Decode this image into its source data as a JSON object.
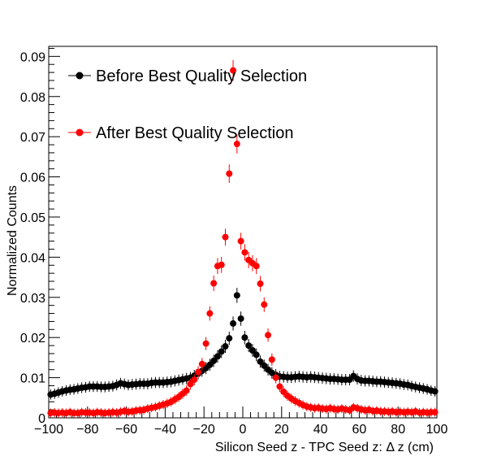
{
  "chart_data": {
    "type": "scatter",
    "xlabel": "Silicon Seed z - TPC Seed z:      Δ z (cm)",
    "ylabel": "Normalized Counts",
    "xlim": [
      -100,
      100
    ],
    "ylim": [
      0,
      0.0925
    ],
    "x_ticks": [
      "−100",
      "−80",
      "−60",
      "−40",
      "−20",
      "0",
      "20",
      "40",
      "60",
      "80",
      "100"
    ],
    "y_ticks": [
      "0",
      "0.01",
      "0.02",
      "0.03",
      "0.04",
      "0.05",
      "0.06",
      "0.07",
      "0.08",
      "0.09"
    ],
    "legend_position": "top-left",
    "series": [
      {
        "name": "Before Best Quality Selection",
        "color": "#000000",
        "x": [
          -99,
          -97,
          -95,
          -93,
          -91,
          -89,
          -87,
          -85,
          -83,
          -81,
          -79,
          -77,
          -75,
          -73,
          -71,
          -69,
          -67,
          -65,
          -63,
          -61,
          -59,
          -57,
          -55,
          -53,
          -51,
          -49,
          -47,
          -45,
          -43,
          -41,
          -39,
          -37,
          -35,
          -33,
          -31,
          -29,
          -27,
          -25,
          -23,
          -21,
          -19,
          -17,
          -15,
          -13,
          -11,
          -9,
          -7,
          -5,
          -3,
          -1,
          1,
          3,
          5,
          7,
          9,
          11,
          13,
          15,
          17,
          19,
          21,
          23,
          25,
          27,
          29,
          31,
          33,
          35,
          37,
          39,
          41,
          43,
          45,
          47,
          49,
          51,
          53,
          55,
          57,
          59,
          61,
          63,
          65,
          67,
          69,
          71,
          73,
          75,
          77,
          79,
          81,
          83,
          85,
          87,
          89,
          91,
          93,
          95,
          97,
          99
        ],
        "y": [
          0.0058,
          0.006,
          0.0063,
          0.0066,
          0.0068,
          0.007,
          0.0071,
          0.0073,
          0.0075,
          0.0076,
          0.0078,
          0.0078,
          0.0078,
          0.0077,
          0.0077,
          0.0078,
          0.0079,
          0.0082,
          0.0086,
          0.0084,
          0.0082,
          0.0083,
          0.0084,
          0.0085,
          0.0085,
          0.0085,
          0.0087,
          0.0088,
          0.0088,
          0.0088,
          0.0089,
          0.009,
          0.0092,
          0.0094,
          0.0096,
          0.0098,
          0.01,
          0.0105,
          0.011,
          0.0117,
          0.0124,
          0.0132,
          0.0142,
          0.0153,
          0.0165,
          0.0178,
          0.0198,
          0.0235,
          0.0305,
          0.0247,
          0.02,
          0.018,
          0.0168,
          0.0157,
          0.014,
          0.013,
          0.012,
          0.0112,
          0.0107,
          0.0103,
          0.0102,
          0.0101,
          0.0101,
          0.0102,
          0.0103,
          0.0102,
          0.0101,
          0.0102,
          0.0101,
          0.01,
          0.0099,
          0.0098,
          0.0097,
          0.0097,
          0.0096,
          0.0095,
          0.0095,
          0.0095,
          0.0104,
          0.0097,
          0.0093,
          0.0092,
          0.0092,
          0.0091,
          0.009,
          0.009,
          0.0089,
          0.0088,
          0.0087,
          0.0086,
          0.0085,
          0.0083,
          0.0082,
          0.0079,
          0.0077,
          0.0075,
          0.0073,
          0.0071,
          0.0068,
          0.0066
        ]
      },
      {
        "name": "After Best Quality Selection",
        "color": "#ff0000",
        "x": [
          -99,
          -97,
          -95,
          -93,
          -91,
          -89,
          -87,
          -85,
          -83,
          -81,
          -79,
          -77,
          -75,
          -73,
          -71,
          -69,
          -67,
          -65,
          -63,
          -61,
          -59,
          -57,
          -55,
          -53,
          -51,
          -49,
          -47,
          -45,
          -43,
          -41,
          -39,
          -37,
          -35,
          -33,
          -31,
          -29,
          -27,
          -25,
          -23,
          -21,
          -19,
          -17,
          -15,
          -13,
          -11,
          -9,
          -7,
          -5,
          -3,
          -1,
          1,
          3,
          5,
          7,
          9,
          11,
          13,
          15,
          17,
          19,
          21,
          23,
          25,
          27,
          29,
          31,
          33,
          35,
          37,
          39,
          41,
          43,
          45,
          47,
          49,
          51,
          53,
          55,
          57,
          59,
          61,
          63,
          65,
          67,
          69,
          71,
          73,
          75,
          77,
          79,
          81,
          83,
          85,
          87,
          89,
          91,
          93,
          95,
          97,
          99
        ],
        "y": [
          0.0012,
          0.0013,
          0.0012,
          0.0013,
          0.0012,
          0.0014,
          0.0012,
          0.0012,
          0.0014,
          0.0013,
          0.0013,
          0.0012,
          0.0014,
          0.0013,
          0.0012,
          0.0013,
          0.0014,
          0.0013,
          0.0015,
          0.0017,
          0.0015,
          0.0016,
          0.0018,
          0.0019,
          0.002,
          0.0023,
          0.0025,
          0.0027,
          0.003,
          0.0033,
          0.0036,
          0.004,
          0.0046,
          0.0052,
          0.006,
          0.0068,
          0.0084,
          0.0095,
          0.0114,
          0.0134,
          0.0185,
          0.026,
          0.0335,
          0.0378,
          0.0381,
          0.045,
          0.0608,
          0.0865,
          0.0682,
          0.044,
          0.0412,
          0.0393,
          0.0385,
          0.0378,
          0.0334,
          0.0282,
          0.0206,
          0.0145,
          0.01,
          0.0078,
          0.0065,
          0.0055,
          0.0048,
          0.0042,
          0.0037,
          0.0032,
          0.0028,
          0.0026,
          0.0024,
          0.0025,
          0.0023,
          0.0022,
          0.0024,
          0.0022,
          0.0021,
          0.0023,
          0.0021,
          0.0019,
          0.0026,
          0.0024,
          0.0021,
          0.0019,
          0.002,
          0.0017,
          0.0018,
          0.0016,
          0.0016,
          0.0015,
          0.0016,
          0.0014,
          0.0015,
          0.0014,
          0.0015,
          0.0014,
          0.0016,
          0.0013,
          0.0014,
          0.0013,
          0.0014,
          0.0014
        ]
      }
    ]
  }
}
